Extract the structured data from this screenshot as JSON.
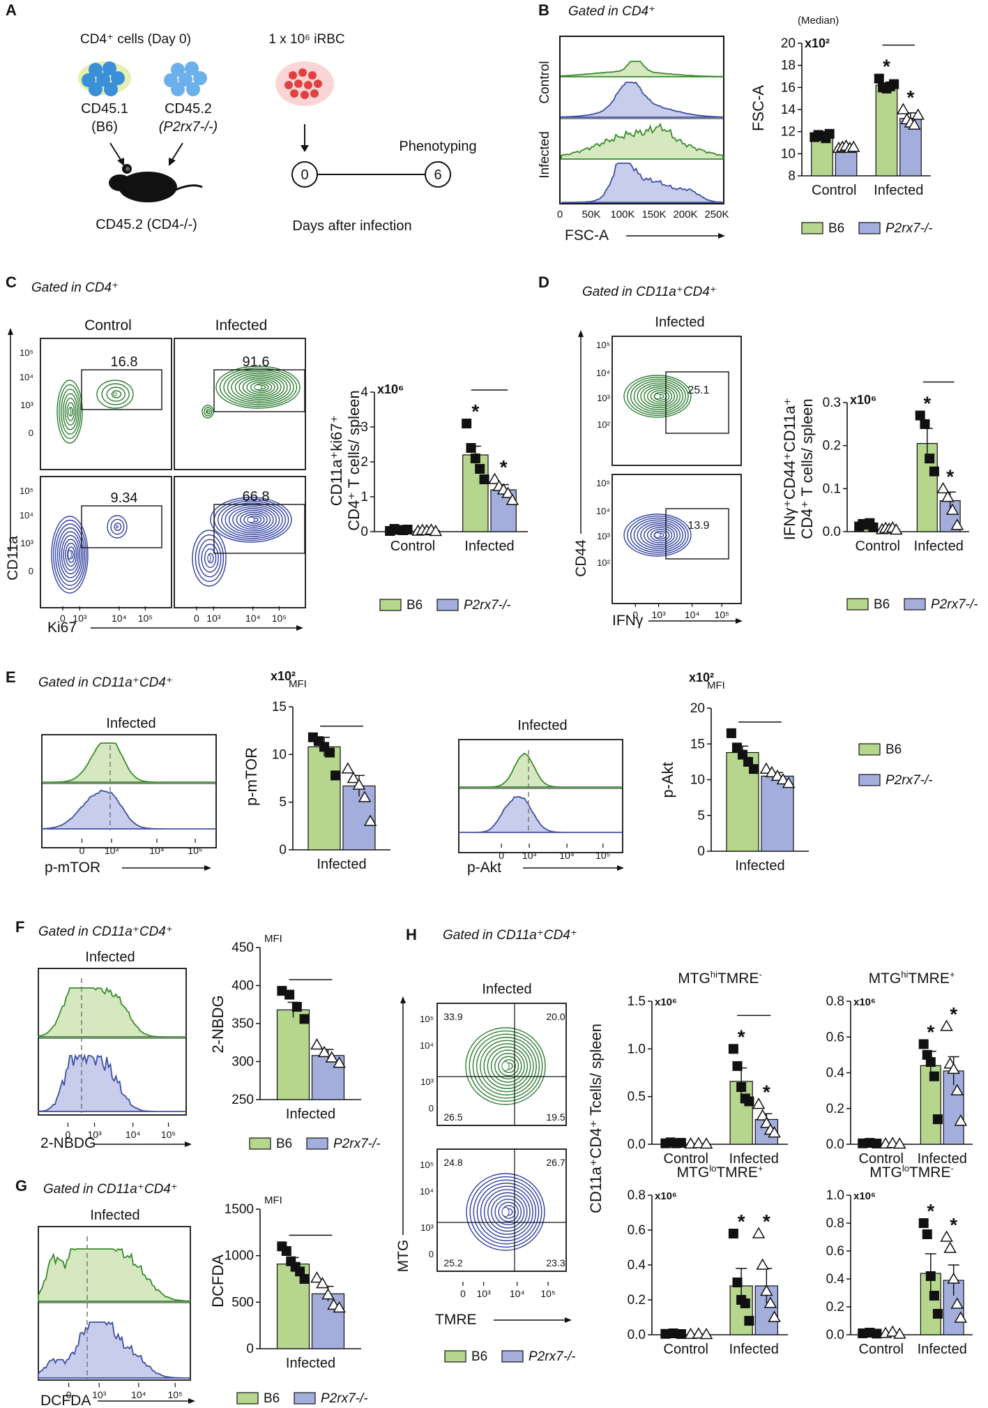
{
  "colors": {
    "b6": "#b5d68c",
    "b6_line": "#3a8a2e",
    "b6_fill": "#d5e8bf",
    "ko": "#a3aedc",
    "ko_line": "#3e4fa5",
    "ko_fill": "#c7cdea",
    "contour_green": "#2e7d32",
    "contour_blue": "#2f3f9e",
    "mouse": "#111111",
    "rbc": "#e04040"
  },
  "legend": {
    "b6": "B6",
    "ko": "P2rx7-/-"
  },
  "panelA": {
    "letter": "A",
    "cells_title": "CD4⁺  cells (Day 0)",
    "donor1": "CD45.1",
    "donor1_strain": "(B6)",
    "donor2": "CD45.2",
    "donor2_strain": "(P2rx7-/-)",
    "host": "CD45.2 (CD4-/-)",
    "irbc": "1 x 10⁶  iRBC",
    "day0": "0",
    "day6": "6",
    "phenotyping": "Phenotyping",
    "timeline_label": "Days after infection"
  },
  "panelB": {
    "letter": "B",
    "gate": "Gated in CD4⁺",
    "row_labels": [
      "Control",
      "Infected"
    ],
    "x_ticks": [
      "0",
      "50K",
      "100K",
      "150K",
      "200K",
      "250K"
    ],
    "x_label": "FSC-A"
  },
  "panelC": {
    "letter": "C",
    "gate": "Gated in CD4⁺",
    "col_labels": [
      "Control",
      "Infected"
    ],
    "gate_values": [
      "16.8",
      "91.6",
      "9.34",
      "66.8"
    ],
    "y_label": "CD11a",
    "x_label": "Ki67",
    "y_ticks": [
      "10⁵",
      "10⁴",
      "10³",
      "0"
    ],
    "x_ticks": [
      "0",
      "10³",
      "10⁴",
      "10⁵"
    ]
  },
  "panelD": {
    "letter": "D",
    "gate": "Gated in CD11a⁺CD4⁺",
    "col_label": "Infected",
    "gate_values": [
      "25.1",
      "13.9"
    ],
    "y_label": "CD44",
    "x_label": "IFNγ",
    "y_ticks": [
      "10⁵",
      "10⁴",
      "10³",
      "10²"
    ],
    "x_ticks": [
      "0",
      "10³",
      "10⁴",
      "10⁵"
    ]
  },
  "panelE": {
    "letter": "E",
    "gate": "Gated in CD11a⁺CD4⁺",
    "hist1_title": "Infected",
    "hist1_x": "p-mTOR",
    "hist2_title": "Infected",
    "hist2_x": "p-Akt",
    "x_ticks": [
      "0",
      "10³",
      "10⁴",
      "10⁵"
    ]
  },
  "panelF": {
    "letter": "F",
    "gate": "Gated in CD11a⁺CD4⁺",
    "hist_title": "Infected",
    "hist_x": "2-NBDG",
    "x_ticks": [
      "0",
      "10³",
      "10⁴",
      "10⁵"
    ]
  },
  "panelG": {
    "letter": "G",
    "gate": "Gated in CD11a⁺CD4⁺",
    "hist_title": "Infected",
    "hist_x": "DCFDA",
    "x_ticks": [
      "0",
      "10³",
      "10⁴",
      "10⁵"
    ]
  },
  "panelH": {
    "letter": "H",
    "gate": "Gated in CD11a⁺CD4⁺",
    "col_label": "Infected",
    "quad_top": [
      "33.9",
      "20.0",
      "26.5",
      "19.5"
    ],
    "quad_bottom": [
      "24.8",
      "26.7",
      "25.2",
      "23.3"
    ],
    "y_label": "MTG",
    "x_label": "TMRE",
    "y_ticks": [
      "10⁵",
      "10⁴",
      "10³",
      "0"
    ],
    "x_ticks": [
      "0",
      "10³",
      "10⁴",
      "10⁵"
    ],
    "shared_ylabel": "CD11a⁺CD4⁺ Tcells/ spleen"
  },
  "chart_data": [
    {
      "id": "B",
      "type": "bar",
      "title": "",
      "unit_label": "(Median)",
      "multiplier": "x10²",
      "ylabel": "FSC-A",
      "ylim": [
        8,
        20
      ],
      "y_ticks": [
        8,
        10,
        12,
        14,
        16,
        18,
        20
      ],
      "groups": [
        "Control",
        "Infected"
      ],
      "series": [
        {
          "name": "B6",
          "values": [
            11.6,
            16.2
          ],
          "errors": [
            0.2,
            0.2
          ],
          "points": [
            [
              11.5,
              11.7,
              11.6,
              11.4,
              11.8
            ],
            [
              16.8,
              16.0,
              15.9,
              16.1,
              16.3
            ]
          ]
        },
        {
          "name": "P2rx7-/-",
          "values": [
            10.6,
            13.2
          ],
          "errors": [
            0.15,
            0.5
          ],
          "points": [
            [
              10.5,
              10.6,
              10.7,
              10.5,
              10.6
            ],
            [
              14.0,
              13.1,
              12.8,
              12.6,
              13.5
            ]
          ]
        }
      ],
      "stars": [
        [
          false,
          true
        ],
        [
          false,
          true
        ]
      ],
      "significance_bar": "Infected"
    },
    {
      "id": "C",
      "type": "bar",
      "multiplier": "x10⁶",
      "ylabel": "CD11a⁺ki67⁺ CD4⁺ T cells/ spleen",
      "ylim": [
        0,
        4
      ],
      "y_ticks": [
        0,
        1,
        2,
        3,
        4
      ],
      "groups": [
        "Control",
        "Infected"
      ],
      "series": [
        {
          "name": "B6",
          "values": [
            0.05,
            2.2
          ],
          "errors": [
            0.03,
            0.25
          ],
          "points": [
            [
              0.02,
              0.08,
              0.05,
              0.04,
              0.06
            ],
            [
              3.1,
              2.4,
              2.1,
              1.8,
              1.5
            ]
          ]
        },
        {
          "name": "P2rx7-/-",
          "values": [
            0.03,
            1.2
          ],
          "errors": [
            0.02,
            0.15
          ],
          "points": [
            [
              0.02,
              0.04,
              0.03,
              0.05,
              0.01
            ],
            [
              1.5,
              1.3,
              1.2,
              1.1,
              0.9
            ]
          ]
        }
      ],
      "stars": [
        [
          false,
          true
        ],
        [
          false,
          true
        ]
      ],
      "significance_bar": "Infected"
    },
    {
      "id": "D",
      "type": "bar",
      "multiplier": "x10⁶",
      "ylabel": "IFNγ⁺CD44⁺CD11a⁺ CD4⁺ T cells/ spleen",
      "ylim": [
        0,
        0.3
      ],
      "y_ticks": [
        0.0,
        0.1,
        0.2,
        0.3
      ],
      "tick_format": 1,
      "groups": [
        "Control",
        "Infected"
      ],
      "series": [
        {
          "name": "B6",
          "values": [
            0.015,
            0.205
          ],
          "errors": [
            0.004,
            0.035
          ],
          "points": [
            [
              0.012,
              0.018,
              0.016,
              0.02,
              0.01
            ],
            [
              0.27,
              0.25,
              0.17,
              0.14
            ]
          ]
        },
        {
          "name": "P2rx7-/-",
          "values": [
            0.007,
            0.072
          ],
          "errors": [
            0.003,
            0.02
          ],
          "points": [
            [
              0.005,
              0.008,
              0.006,
              0.009,
              0.004
            ],
            [
              0.1,
              0.08,
              0.05,
              0.015
            ]
          ]
        }
      ],
      "stars": [
        [
          false,
          true
        ],
        [
          false,
          true
        ]
      ],
      "significance_bar": "Infected"
    },
    {
      "id": "E1",
      "type": "bar",
      "multiplier": "x10²",
      "unit_label": "MFI",
      "ylabel": "p-mTOR",
      "ylim": [
        0,
        15
      ],
      "y_ticks": [
        0,
        5,
        10,
        15
      ],
      "groups": [
        "Infected"
      ],
      "series": [
        {
          "name": "B6",
          "values": [
            10.8
          ],
          "errors": [
            1.0
          ],
          "points": [
            [
              11.8,
              11.4,
              10.8,
              10.2,
              7.8
            ]
          ]
        },
        {
          "name": "P2rx7-/-",
          "values": [
            6.7
          ],
          "errors": [
            1.1
          ],
          "points": [
            [
              8.5,
              7.5,
              6.8,
              5.5,
              3.0
            ]
          ]
        }
      ],
      "stars": [
        [
          false
        ],
        [
          false
        ]
      ],
      "significance_bar": "Infected"
    },
    {
      "id": "E2",
      "type": "bar",
      "multiplier": "x10²",
      "unit_label": "MFI",
      "ylabel": "p-Akt",
      "ylim": [
        0,
        20
      ],
      "y_ticks": [
        0,
        5,
        10,
        15,
        20
      ],
      "groups": [
        "Infected"
      ],
      "series": [
        {
          "name": "B6",
          "values": [
            13.8
          ],
          "errors": [
            0.9
          ],
          "points": [
            [
              16.5,
              14.5,
              13.5,
              12.5,
              11.5
            ]
          ]
        },
        {
          "name": "P2rx7-/-",
          "values": [
            10.5
          ],
          "errors": [
            0.5
          ],
          "points": [
            [
              11.5,
              11.0,
              10.5,
              10.0,
              9.5
            ]
          ]
        }
      ],
      "stars": [
        [
          false
        ],
        [
          false
        ]
      ],
      "significance_bar": "Infected"
    },
    {
      "id": "F",
      "type": "bar",
      "unit_label": "MFI",
      "ylabel": "2-NBDG",
      "ylim": [
        250,
        450
      ],
      "y_ticks": [
        250,
        300,
        350,
        400,
        450
      ],
      "groups": [
        "Infected"
      ],
      "series": [
        {
          "name": "B6",
          "values": [
            368
          ],
          "errors": [
            10
          ],
          "points": [
            [
              393,
              388,
              372,
              356
            ]
          ]
        },
        {
          "name": "P2rx7-/-",
          "values": [
            308
          ],
          "errors": [
            8
          ],
          "points": [
            [
              322,
              312,
              305,
              298
            ]
          ]
        }
      ],
      "stars": [
        [
          false
        ],
        [
          false
        ]
      ],
      "significance_bar": "Infected"
    },
    {
      "id": "G",
      "type": "bar",
      "unit_label": "MFI",
      "ylabel": "DCFDA",
      "ylim": [
        0,
        1500
      ],
      "y_ticks": [
        0,
        500,
        1000,
        1500
      ],
      "groups": [
        "Infected"
      ],
      "series": [
        {
          "name": "B6",
          "values": [
            910
          ],
          "errors": [
            70
          ],
          "points": [
            [
              1100,
              1050,
              940,
              880,
              830,
              750
            ]
          ]
        },
        {
          "name": "P2rx7-/-",
          "values": [
            590
          ],
          "errors": [
            80
          ],
          "points": [
            [
              760,
              700,
              580,
              470,
              440
            ]
          ]
        }
      ],
      "stars": [
        [
          false
        ],
        [
          false
        ]
      ],
      "significance_bar": "Infected"
    },
    {
      "id": "H1",
      "type": "bar",
      "title": "MTGhiTMRE-",
      "multiplier": "x10⁶",
      "ylim": [
        0,
        1.5
      ],
      "y_ticks": [
        0.0,
        0.5,
        1.0,
        1.5
      ],
      "tick_format": 1,
      "groups": [
        "Control",
        "Infected"
      ],
      "series": [
        {
          "name": "B6",
          "values": [
            0.01,
            0.66
          ],
          "errors": [
            0.005,
            0.14
          ],
          "points": [
            [
              0.01,
              0.02,
              0.01,
              0.015
            ],
            [
              1.0,
              0.82,
              0.6,
              0.48,
              0.45
            ]
          ]
        },
        {
          "name": "P2rx7-/-",
          "values": [
            0.005,
            0.26
          ],
          "errors": [
            0.003,
            0.06
          ],
          "points": [
            [
              0.005,
              0.008,
              0.004
            ],
            [
              0.42,
              0.3,
              0.22,
              0.15,
              0.12
            ]
          ]
        }
      ],
      "stars": [
        [
          false,
          true
        ],
        [
          false,
          true
        ]
      ],
      "significance_bar": "Infected"
    },
    {
      "id": "H2",
      "type": "bar",
      "title": "MTGhiTMRE+",
      "multiplier": "x10⁶",
      "ylim": [
        0,
        0.8
      ],
      "y_ticks": [
        0.0,
        0.2,
        0.4,
        0.6,
        0.8
      ],
      "tick_format": 1,
      "groups": [
        "Control",
        "Infected"
      ],
      "series": [
        {
          "name": "B6",
          "values": [
            0.005,
            0.44
          ],
          "errors": [
            0.003,
            0.08
          ],
          "points": [
            [
              0.005,
              0.008,
              0.004
            ],
            [
              0.56,
              0.5,
              0.46,
              0.38,
              0.14
            ]
          ]
        },
        {
          "name": "P2rx7-/-",
          "values": [
            0.003,
            0.41
          ],
          "errors": [
            0.002,
            0.08
          ],
          "points": [
            [
              0.003,
              0.005,
              0.002
            ],
            [
              0.66,
              0.45,
              0.42,
              0.3,
              0.13
            ]
          ]
        }
      ],
      "stars": [
        [
          false,
          true
        ],
        [
          false,
          true
        ]
      ],
      "significance_bar": ""
    },
    {
      "id": "H3",
      "type": "bar",
      "title": "MTGloTMRE+",
      "multiplier": "x10⁶",
      "ylim": [
        0,
        0.8
      ],
      "y_ticks": [
        0.0,
        0.2,
        0.4,
        0.6,
        0.8
      ],
      "tick_format": 1,
      "groups": [
        "Control",
        "Infected"
      ],
      "series": [
        {
          "name": "B6",
          "values": [
            0.005,
            0.28
          ],
          "errors": [
            0.003,
            0.1
          ],
          "points": [
            [
              0.005,
              0.008,
              0.004
            ],
            [
              0.58,
              0.3,
              0.2,
              0.18,
              0.08
            ]
          ]
        },
        {
          "name": "P2rx7-/-",
          "values": [
            0.003,
            0.28
          ],
          "errors": [
            0.002,
            0.1
          ],
          "points": [
            [
              0.003,
              0.005,
              0.002
            ],
            [
              0.58,
              0.4,
              0.25,
              0.18,
              0.1
            ]
          ]
        }
      ],
      "stars": [
        [
          false,
          true
        ],
        [
          false,
          true
        ]
      ],
      "significance_bar": ""
    },
    {
      "id": "H4",
      "type": "bar",
      "title": "MTGloTMRE-",
      "multiplier": "x10⁶",
      "ylim": [
        0,
        1.0
      ],
      "y_ticks": [
        0.0,
        0.2,
        0.4,
        0.6,
        0.8,
        1.0
      ],
      "tick_format": 1,
      "groups": [
        "Control",
        "Infected"
      ],
      "series": [
        {
          "name": "B6",
          "values": [
            0.01,
            0.44
          ],
          "errors": [
            0.005,
            0.14
          ],
          "points": [
            [
              0.01,
              0.015,
              0.008
            ],
            [
              0.8,
              0.72,
              0.42,
              0.28,
              0.15
            ]
          ]
        },
        {
          "name": "P2rx7-/-",
          "values": [
            0.01,
            0.39
          ],
          "errors": [
            0.005,
            0.11
          ],
          "points": [
            [
              0.01,
              0.02,
              0.005
            ],
            [
              0.7,
              0.62,
              0.4,
              0.22,
              0.12
            ]
          ]
        }
      ],
      "stars": [
        [
          false,
          true
        ],
        [
          false,
          true
        ]
      ],
      "significance_bar": ""
    }
  ]
}
